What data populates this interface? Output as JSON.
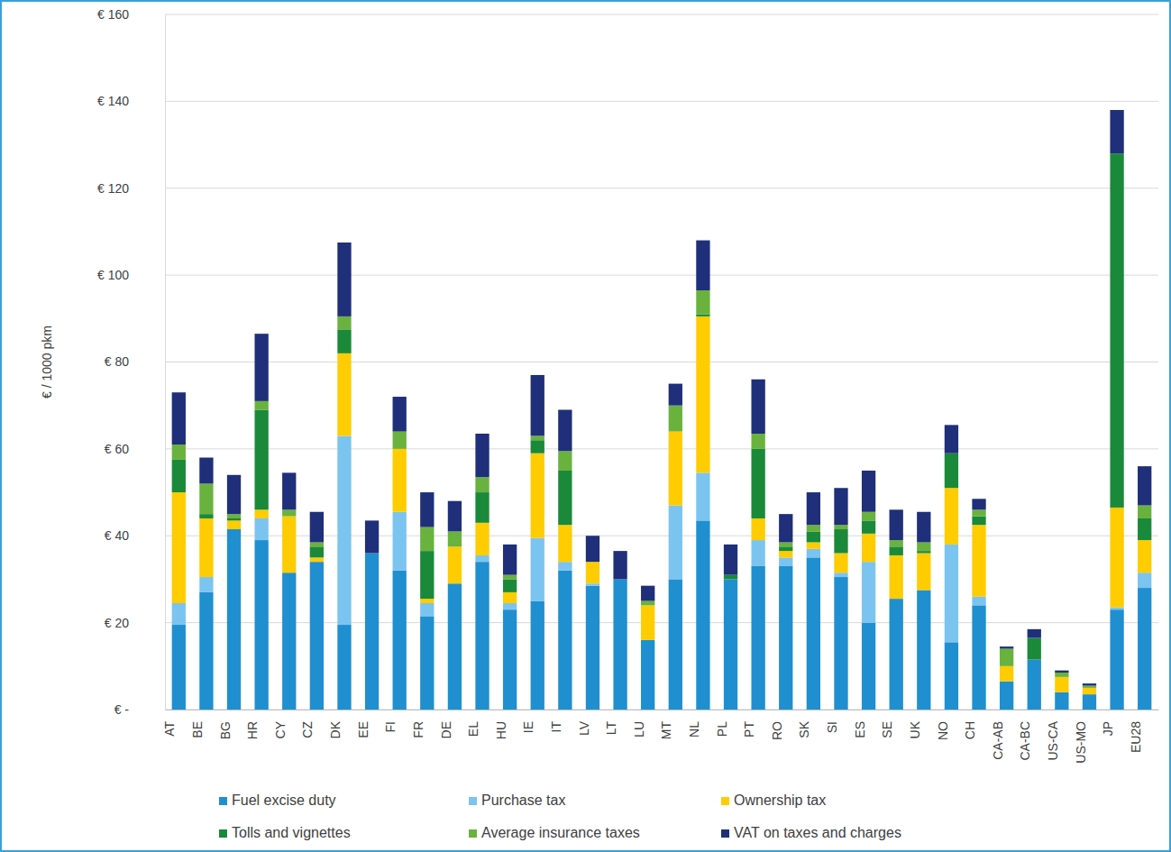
{
  "chart_data": {
    "type": "bar",
    "stacked": true,
    "grid": true,
    "legend": "bottom",
    "y_label": "€ / 1000 pkm",
    "categories": [
      "AT",
      "BE",
      "BG",
      "HR",
      "CY",
      "CZ",
      "DK",
      "EE",
      "FI",
      "FR",
      "DE",
      "EL",
      "HU",
      "IE",
      "IT",
      "LV",
      "LT",
      "LU",
      "MT",
      "NL",
      "PL",
      "PT",
      "RO",
      "SK",
      "SI",
      "ES",
      "SE",
      "UK",
      "NO",
      "CH",
      "CA-AB",
      "CA-BC",
      "US-CA",
      "US-MO",
      "JP",
      "EU28"
    ],
    "ylim": [
      0,
      160
    ],
    "yticks": [
      {
        "value": 0,
        "label": "€ -"
      },
      {
        "value": 20,
        "label": "€ 20"
      },
      {
        "value": 40,
        "label": "€ 40"
      },
      {
        "value": 60,
        "label": "€ 60"
      },
      {
        "value": 80,
        "label": "€ 80"
      },
      {
        "value": 100,
        "label": "€ 100"
      },
      {
        "value": 120,
        "label": "€ 120"
      },
      {
        "value": 140,
        "label": "€ 140"
      },
      {
        "value": 160,
        "label": "€ 160"
      }
    ],
    "series": [
      {
        "name": "Fuel excise duty",
        "color": "#1f8fd0",
        "values": [
          19.5,
          27,
          41.5,
          39,
          31.5,
          34,
          19.5,
          36,
          32,
          21.5,
          29,
          34,
          23,
          25,
          32,
          28.5,
          30,
          16,
          30,
          43.5,
          30,
          33,
          33,
          35,
          30.5,
          20,
          25.5,
          27.5,
          15.5,
          24,
          6.5,
          11.5,
          4,
          3.5,
          23,
          28
        ]
      },
      {
        "name": "Purchase tax",
        "color": "#7cc4f0",
        "values": [
          5,
          3.5,
          0,
          5,
          0,
          0,
          43.5,
          0,
          13.5,
          3,
          0,
          1.5,
          1.5,
          14.5,
          2,
          0.5,
          0,
          0,
          17,
          11,
          0,
          6,
          2,
          2,
          1,
          14,
          0,
          0,
          22.5,
          2,
          0,
          0,
          0,
          0,
          0.5,
          3.5
        ]
      },
      {
        "name": "Ownership tax",
        "color": "#ffcc00",
        "values": [
          25.5,
          13.5,
          2,
          2,
          13,
          1,
          19,
          0,
          14.5,
          1,
          8.5,
          7.5,
          2.5,
          19.5,
          8.5,
          5,
          0,
          8,
          17,
          36,
          0,
          5,
          1.5,
          1.5,
          4.5,
          6.5,
          10,
          8.5,
          13,
          16.5,
          3.5,
          0,
          3.5,
          1.5,
          23,
          7.5
        ]
      },
      {
        "name": "Tolls and vignettes",
        "color": "#1a8a3a",
        "values": [
          7.5,
          1,
          0.5,
          23,
          0,
          2.5,
          5.5,
          0,
          0,
          11,
          0,
          7,
          3,
          3,
          12.5,
          0,
          0,
          0,
          0,
          0.5,
          1,
          16,
          1,
          2.5,
          5.5,
          3,
          2,
          0.5,
          8,
          2,
          0,
          5,
          0,
          0,
          81.5,
          5
        ]
      },
      {
        "name": "Average insurance taxes",
        "color": "#6ab23e",
        "values": [
          3.5,
          7,
          1,
          2,
          1.5,
          1,
          3,
          0,
          4,
          5.5,
          3.5,
          3.5,
          1,
          1,
          4.5,
          0,
          0,
          1,
          6,
          5.5,
          0,
          3.5,
          1,
          1.5,
          1,
          2,
          1.5,
          2,
          0,
          1.5,
          4,
          0,
          1,
          0.5,
          0,
          3
        ]
      },
      {
        "name": "VAT on taxes and charges",
        "color": "#1f2f7a",
        "values": [
          12,
          6,
          9,
          15.5,
          8.5,
          7,
          17,
          7.5,
          8,
          8,
          7,
          10,
          7,
          14,
          9.5,
          6,
          6.5,
          3.5,
          5,
          11.5,
          7,
          12.5,
          6.5,
          7.5,
          8.5,
          9.5,
          7,
          7,
          6.5,
          2.5,
          0.5,
          2,
          0.5,
          0.5,
          10,
          9
        ]
      }
    ]
  }
}
